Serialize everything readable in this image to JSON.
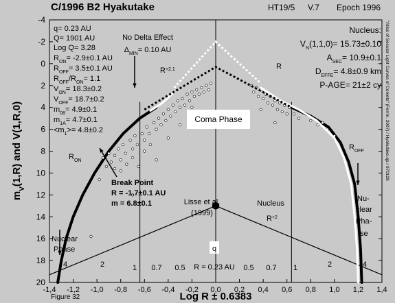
{
  "chart_data": {
    "type": "scatter",
    "title": "C/1996 B2 Hyakutake",
    "header": [
      "HT19/5",
      "V.7",
      "Epoch 1996"
    ],
    "x_label": "Log R ± 0.6383",
    "y_label": [
      "m",
      "V",
      "(1,R) and V(1,R,0)"
    ],
    "figure_label": "Figure 32",
    "credit": "\"Atlas of Secular Light Curves of Comets\" (Ferrín, 2007) / Hyakutake.qp / 070128",
    "xlim": [
      -1.4,
      1.4
    ],
    "ylim": [
      -4,
      20
    ],
    "y_inverted": true,
    "xticks": [
      {
        "value": -1.4,
        "label": "-1,4"
      },
      {
        "value": -1.2,
        "label": "-1,2"
      },
      {
        "value": -1.0,
        "label": "-1,0"
      },
      {
        "value": -0.8,
        "label": "-0,8"
      },
      {
        "value": -0.6,
        "label": "-0,6"
      },
      {
        "value": -0.4,
        "label": "-0,4"
      },
      {
        "value": -0.2,
        "label": "-0,2"
      },
      {
        "value": 0,
        "label": "0,0"
      },
      {
        "value": 0.2,
        "label": "0,2"
      },
      {
        "value": 0.4,
        "label": "0,4"
      },
      {
        "value": 0.6,
        "label": "0,6"
      },
      {
        "value": 0.8,
        "label": "0,8"
      },
      {
        "value": 1.0,
        "label": "1,0"
      },
      {
        "value": 1.2,
        "label": "1,2"
      },
      {
        "value": 1.4,
        "label": "1,4"
      }
    ],
    "yticks": [
      -4,
      -2,
      0,
      2,
      4,
      6,
      8,
      10,
      12,
      14,
      16,
      18,
      20
    ],
    "vlines": [
      -0.6383,
      0,
      0.6383
    ],
    "series": [
      {
        "mode": "markers",
        "color": "#ffffff",
        "x": [
          -0.95,
          -0.92,
          -0.9,
          -0.88,
          -0.85,
          -0.85,
          -0.82,
          -0.8,
          -0.8,
          -0.78,
          -0.76,
          -0.75,
          -0.72,
          -0.7,
          -0.7,
          -0.68,
          -0.66,
          -0.65,
          -0.62,
          -0.6,
          -0.6,
          -0.58,
          -0.56,
          -0.55,
          -0.52,
          -0.5,
          -0.5,
          -0.48,
          -0.46,
          -0.44,
          -0.42,
          -0.4,
          -0.4,
          -0.38,
          -0.36,
          -0.34,
          -0.32,
          -0.3,
          -0.3,
          -0.28,
          -0.26,
          -0.24,
          -0.22,
          -0.2,
          -0.2,
          -0.18,
          -0.16,
          -0.14,
          -0.12,
          -0.1,
          -0.08,
          -0.06,
          -0.04,
          -1.05,
          -0.98,
          -0.7,
          0.3,
          0.32,
          0.34,
          0.36,
          0.38,
          0.4,
          0.42,
          0.44,
          0.46,
          0.48,
          0.5,
          0.52,
          0.54,
          0.56,
          0.58,
          0.6,
          0.62,
          0.66,
          0.7,
          0.76,
          0.8,
          0.86,
          0.9,
          0.94,
          1.0,
          0.5,
          0.38
        ],
        "values": [
          8.6,
          9.4,
          8.2,
          9.0,
          8.4,
          9.6,
          7.8,
          8.8,
          9.8,
          7.4,
          8.2,
          9.2,
          7.0,
          7.8,
          8.6,
          6.6,
          7.4,
          9.4,
          6.4,
          7.0,
          8.0,
          5.8,
          6.4,
          7.4,
          5.4,
          6.0,
          8.8,
          5.0,
          5.6,
          4.6,
          5.2,
          4.2,
          6.8,
          4.8,
          3.8,
          4.4,
          3.4,
          4.0,
          5.6,
          3.2,
          3.8,
          2.8,
          3.4,
          2.6,
          4.0,
          3.0,
          2.4,
          2.8,
          2.2,
          2.6,
          2.0,
          2.4,
          1.8,
          15.8,
          10.6,
          12.0,
          2.0,
          2.6,
          2.2,
          3.0,
          2.4,
          3.2,
          2.8,
          3.6,
          3.0,
          3.8,
          3.4,
          4.2,
          3.6,
          4.4,
          3.8,
          4.6,
          4.0,
          4.6,
          5.0,
          4.6,
          5.2,
          5.6,
          5.4,
          6.0,
          6.6,
          5.4,
          4.2
        ]
      },
      {
        "mode": "line",
        "color": "#000000",
        "width": 4,
        "x": [
          -1.33,
          -1.3,
          -1.26,
          -1.2,
          -1.12,
          -1.02,
          -0.9,
          -0.78,
          -0.64,
          -0.5
        ],
        "values": [
          20,
          18,
          16,
          14,
          12,
          10,
          8,
          6.4,
          5,
          4.0
        ]
      },
      {
        "mode": "line",
        "color": "#000000",
        "width": 4,
        "x": [
          0.64,
          0.8,
          0.95,
          1.05,
          1.12,
          1.17,
          1.2,
          1.22,
          1.23
        ],
        "values": [
          4,
          4.8,
          5.8,
          7.2,
          9,
          11,
          14,
          17,
          20
        ]
      },
      {
        "mode": "line",
        "color": "#ffffff",
        "width": 3,
        "x": [
          -0.55,
          -0.45,
          -0.35,
          0,
          0.38,
          0.55,
          0.7,
          0.85,
          1.0,
          1.08,
          1.14,
          1.17,
          1.19,
          1.2
        ],
        "values": [
          4.3,
          3.6,
          2.6,
          null,
          2.2,
          3.4,
          4.2,
          5.2,
          6.8,
          8.6,
          11,
          14,
          17,
          20
        ]
      },
      {
        "mode": "dots",
        "color": "#ffffff",
        "width": 3,
        "x": [
          -0.35,
          0,
          0.38
        ],
        "values": [
          2.2,
          -2,
          1.8
        ]
      },
      {
        "mode": "dots",
        "color": "#000000",
        "width": 3,
        "x": [
          -0.6,
          0,
          0.64
        ],
        "values": [
          4.2,
          0.3,
          4.0
        ]
      },
      {
        "mode": "line",
        "color": "#000000",
        "width": 1.2,
        "x": [
          -1.4,
          0,
          1.4
        ],
        "values": [
          19.3,
          13,
          19.3
        ]
      },
      {
        "mode": "markers",
        "color": "#000000",
        "size": 5,
        "x": [
          0
        ],
        "values": [
          13
        ]
      }
    ],
    "annotations": [
      {
        "parts": [
          "q= 0.23 AU"
        ]
      },
      {
        "parts": [
          "Q= 1901 AU"
        ]
      },
      {
        "parts": [
          "Log Q= 3.28"
        ]
      },
      {
        "parts": [
          "R",
          "ON",
          "= -2.9±0.1 AU"
        ]
      },
      {
        "parts": [
          "R",
          "OFF",
          "= 3.5±0.1 AU"
        ]
      },
      {
        "parts": [
          "R",
          "OFF",
          "/R",
          "ON",
          "= 1.1"
        ]
      },
      {
        "parts": [
          "V",
          "ON",
          "= 18.3±0.2"
        ]
      },
      {
        "parts": [
          "V",
          "OFF",
          "= 18.7±0.2"
        ]
      },
      {
        "parts": [
          "m",
          "08",
          "= 4.9±0.1"
        ]
      },
      {
        "parts": [
          "m",
          "1A",
          "= 4.7±0.1"
        ]
      },
      {
        "parts": [
          "<m",
          "1",
          ">= 4.8±0.2"
        ]
      },
      {
        "parts": [
          "No Delta Effect"
        ]
      },
      {
        "parts": [
          "Δ",
          "MIN",
          "= 0.10 AU"
        ]
      },
      {
        "parts": [
          "R",
          "+2.1"
        ],
        "script": "sup"
      },
      {
        "parts": [
          "R"
        ]
      },
      {
        "parts": [
          "Nucleus:"
        ]
      },
      {
        "parts": [
          "V",
          "N",
          "(1,1,0)= 15.73±0.10"
        ]
      },
      {
        "parts": [
          "A",
          "SEC",
          "= 10.9±0.1"
        ]
      },
      {
        "parts": [
          "D",
          "EFFE",
          "= 4.8±0.9 km"
        ]
      },
      {
        "parts": [
          "P-AGE= 21±2 cy"
        ]
      },
      {
        "parts": [
          "Coma Phase"
        ]
      },
      {
        "parts": [
          "R",
          "ON"
        ]
      },
      {
        "parts": [
          "R",
          "OFF"
        ]
      },
      {
        "parts": [
          "Break Point"
        ],
        "bold": true
      },
      {
        "parts": [
          "R = -1.7±0.1 AU"
        ],
        "bold": true
      },
      {
        "parts": [
          "m = 6.8±0.1"
        ],
        "bold": true
      },
      {
        "parts": [
          "Lisse et al."
        ]
      },
      {
        "parts": [
          "(1999)"
        ]
      },
      {
        "parts": [
          "Nucleus"
        ]
      },
      {
        "parts": [
          "R",
          "+2"
        ],
        "script": "sup"
      },
      {
        "parts": [
          "Nuclear"
        ]
      },
      {
        "parts": [
          "Phase"
        ]
      },
      {
        "parts": [
          "Nu-"
        ]
      },
      {
        "parts": [
          "clear"
        ]
      },
      {
        "parts": [
          "Pha-"
        ]
      },
      {
        "parts": [
          "se"
        ]
      },
      {
        "parts": [
          "q"
        ]
      },
      {
        "parts": [
          "4"
        ]
      },
      {
        "parts": [
          "2"
        ]
      },
      {
        "parts": [
          "1"
        ]
      },
      {
        "parts": [
          "0.7"
        ]
      },
      {
        "parts": [
          "0.5"
        ]
      },
      {
        "parts": [
          "R = 0.23 AU"
        ]
      },
      {
        "parts": [
          "0.5"
        ]
      },
      {
        "parts": [
          "0.7"
        ]
      },
      {
        "parts": [
          "1"
        ]
      },
      {
        "parts": [
          "2"
        ]
      },
      {
        "parts": [
          "4"
        ]
      }
    ]
  }
}
